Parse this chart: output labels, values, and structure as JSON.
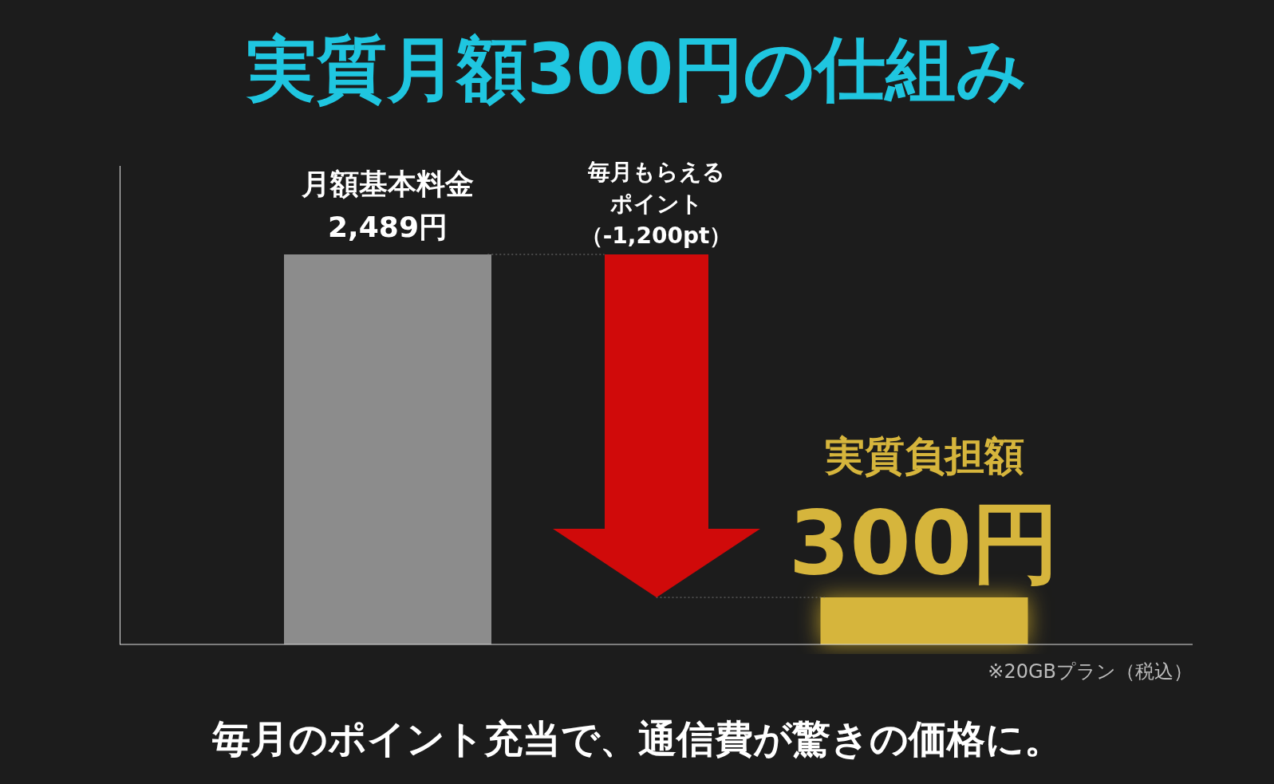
{
  "chart_data": {
    "type": "bar",
    "title": "実質月額300円の仕組み",
    "categories": [
      null,
      null
    ],
    "values": [
      2489,
      300
    ],
    "colors": [
      "#8c8c8c",
      "#d6b53c"
    ],
    "value_labels": [
      "2,489円",
      "300円"
    ],
    "annotations": [
      "毎月もらえるポイント（-1,200pt）",
      "※20GBプラン（税込）",
      "毎月のポイント充当で、通信費が驚きの価格に。",
      "月額基本料金",
      "実質負担額"
    ]
  }
}
